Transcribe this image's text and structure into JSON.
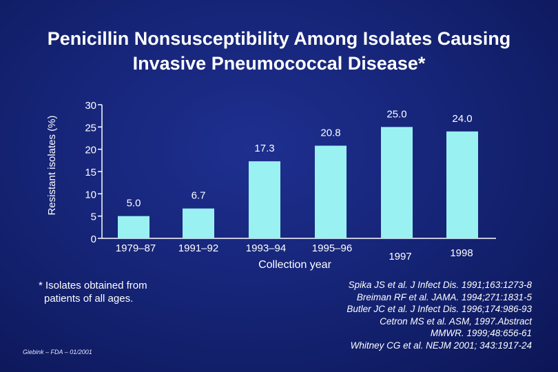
{
  "title_lines": [
    "Penicillin Nonsusceptibility Among Isolates Causing",
    "Invasive Pneumococcal Disease*"
  ],
  "colors": {
    "bar": "#9af1f1",
    "text": "#ffffff",
    "axis": "#ffffff"
  },
  "chart_data": {
    "type": "bar",
    "title": "Penicillin Nonsusceptibility Among Isolates Causing Invasive Pneumococcal Disease*",
    "xlabel": "Collection year",
    "ylabel": "Resistant isolates (%)",
    "ylim": [
      0,
      30
    ],
    "yticks": [
      "0",
      "5",
      "10",
      "15",
      "20",
      "25",
      "30"
    ],
    "categories": [
      "1979–87",
      "1991–92",
      "1993–94",
      "1995–96",
      "1997",
      "1998"
    ],
    "values": [
      5.0,
      6.7,
      17.3,
      20.8,
      25.0,
      24.0
    ],
    "value_labels": [
      "5.0",
      "6.7",
      "17.3",
      "20.8",
      "25.0",
      "24.0"
    ]
  },
  "footnote_lines": [
    "* Isolates obtained from",
    "patients of all ages."
  ],
  "credit": "Giebink – FDA – 01/2001",
  "references": [
    "Spika JS et al. J Infect Dis. 1991;163:1273-8",
    "Breiman RF et al. JAMA. 1994;271:1831-5",
    "Butler JC et al. J Infect Dis. 1996;174:986-93",
    "Cetron MS et al. ASM, 1997.Abstract",
    "MMWR. 1999;48:656-61",
    "Whitney CG et al. NEJM 2001; 343:1917-24"
  ]
}
